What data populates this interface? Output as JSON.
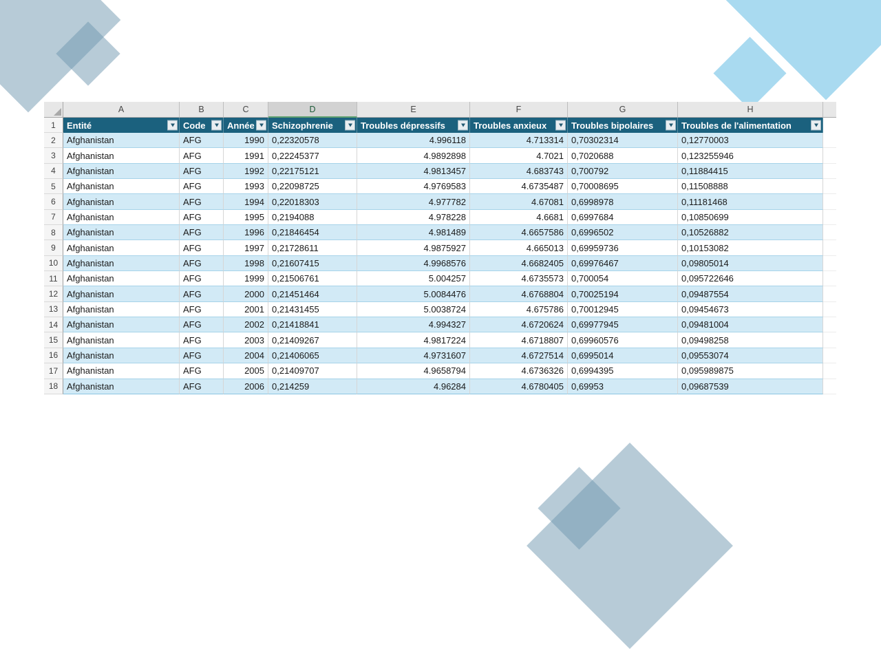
{
  "colors": {
    "header_bg": "#1b617e",
    "band_blue": "#d2eaf6",
    "row_border_blue": "#a6d3e9",
    "active_column_underline": "#5fa06f",
    "decor_slate": "rgba(111,152,176,0.5)",
    "decor_cyan": "rgba(64,174,222,0.45)"
  },
  "sheet": {
    "column_letters": [
      "A",
      "B",
      "C",
      "D",
      "E",
      "F",
      "G",
      "H"
    ],
    "active_column": "D",
    "header_row_number": "1",
    "headers": [
      "Entité",
      "Code",
      "Année",
      "Schizophrenie",
      "Troubles dépressifs",
      "Troubles anxieux",
      "Troubles bipolaires",
      "Troubles de l'alimentation"
    ],
    "rows": [
      {
        "n": "2",
        "cells": [
          "Afghanistan",
          "AFG",
          "1990",
          "0,22320578",
          "4.996118",
          "4.713314",
          "0,70302314",
          "0,12770003"
        ]
      },
      {
        "n": "3",
        "cells": [
          "Afghanistan",
          "AFG",
          "1991",
          "0,22245377",
          "4.9892898",
          "4.7021",
          "0,7020688",
          "0,123255946"
        ]
      },
      {
        "n": "4",
        "cells": [
          "Afghanistan",
          "AFG",
          "1992",
          "0,22175121",
          "4.9813457",
          "4.683743",
          "0,700792",
          "0,11884415"
        ]
      },
      {
        "n": "5",
        "cells": [
          "Afghanistan",
          "AFG",
          "1993",
          "0,22098725",
          "4.9769583",
          "4.6735487",
          "0,70008695",
          "0,11508888"
        ]
      },
      {
        "n": "6",
        "cells": [
          "Afghanistan",
          "AFG",
          "1994",
          "0,22018303",
          "4.977782",
          "4.67081",
          "0,6998978",
          "0,11181468"
        ]
      },
      {
        "n": "7",
        "cells": [
          "Afghanistan",
          "AFG",
          "1995",
          "0,2194088",
          "4.978228",
          "4.6681",
          "0,6997684",
          "0,10850699"
        ]
      },
      {
        "n": "8",
        "cells": [
          "Afghanistan",
          "AFG",
          "1996",
          "0,21846454",
          "4.981489",
          "4.6657586",
          "0,6996502",
          "0,10526882"
        ]
      },
      {
        "n": "9",
        "cells": [
          "Afghanistan",
          "AFG",
          "1997",
          "0,21728611",
          "4.9875927",
          "4.665013",
          "0,69959736",
          "0,10153082"
        ]
      },
      {
        "n": "10",
        "cells": [
          "Afghanistan",
          "AFG",
          "1998",
          "0,21607415",
          "4.9968576",
          "4.6682405",
          "0,69976467",
          "0,09805014"
        ]
      },
      {
        "n": "11",
        "cells": [
          "Afghanistan",
          "AFG",
          "1999",
          "0,21506761",
          "5.004257",
          "4.6735573",
          "0,700054",
          "0,095722646"
        ]
      },
      {
        "n": "12",
        "cells": [
          "Afghanistan",
          "AFG",
          "2000",
          "0,21451464",
          "5.0084476",
          "4.6768804",
          "0,70025194",
          "0,09487554"
        ]
      },
      {
        "n": "13",
        "cells": [
          "Afghanistan",
          "AFG",
          "2001",
          "0,21431455",
          "5.0038724",
          "4.675786",
          "0,70012945",
          "0,09454673"
        ]
      },
      {
        "n": "14",
        "cells": [
          "Afghanistan",
          "AFG",
          "2002",
          "0,21418841",
          "4.994327",
          "4.6720624",
          "0,69977945",
          "0,09481004"
        ]
      },
      {
        "n": "15",
        "cells": [
          "Afghanistan",
          "AFG",
          "2003",
          "0,21409267",
          "4.9817224",
          "4.6718807",
          "0,69960576",
          "0,09498258"
        ]
      },
      {
        "n": "16",
        "cells": [
          "Afghanistan",
          "AFG",
          "2004",
          "0,21406065",
          "4.9731607",
          "4.6727514",
          "0,6995014",
          "0,09553074"
        ]
      },
      {
        "n": "17",
        "cells": [
          "Afghanistan",
          "AFG",
          "2005",
          "0,21409707",
          "4.9658794",
          "4.6736326",
          "0,6994395",
          "0,095989875"
        ]
      },
      {
        "n": "18",
        "cells": [
          "Afghanistan",
          "AFG",
          "2006",
          "0,214259",
          "4.96284",
          "4.6780405",
          "0,69953",
          "0,09687539"
        ]
      }
    ]
  }
}
